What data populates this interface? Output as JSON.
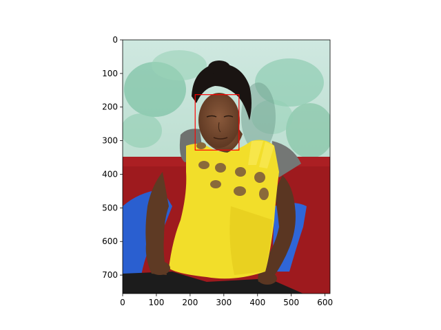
{
  "figure": {
    "x_ticks": [
      "0",
      "100",
      "200",
      "300",
      "400",
      "500",
      "600"
    ],
    "y_ticks": [
      "0",
      "100",
      "200",
      "300",
      "400",
      "500",
      "600",
      "700"
    ],
    "x_range": [
      0,
      615
    ],
    "y_range": [
      0,
      755
    ],
    "image_description_name": "photo-woman-yellow-shirt",
    "bbox_color": "#ff0000",
    "bbox_data": {
      "x0": 215,
      "y0": 163,
      "x1": 345,
      "y1": 328
    }
  },
  "chart_data": {
    "type": "image",
    "title": "",
    "xlabel": "",
    "ylabel": "",
    "xlim": [
      0,
      615
    ],
    "ylim": [
      755,
      0
    ],
    "x_ticks": [
      0,
      100,
      200,
      300,
      400,
      500,
      600
    ],
    "y_ticks": [
      0,
      100,
      200,
      300,
      400,
      500,
      600,
      700
    ],
    "rectangles": [
      {
        "x": 215,
        "y": 163,
        "width": 130,
        "height": 165,
        "color": "#ff0000"
      }
    ],
    "grid": false
  }
}
